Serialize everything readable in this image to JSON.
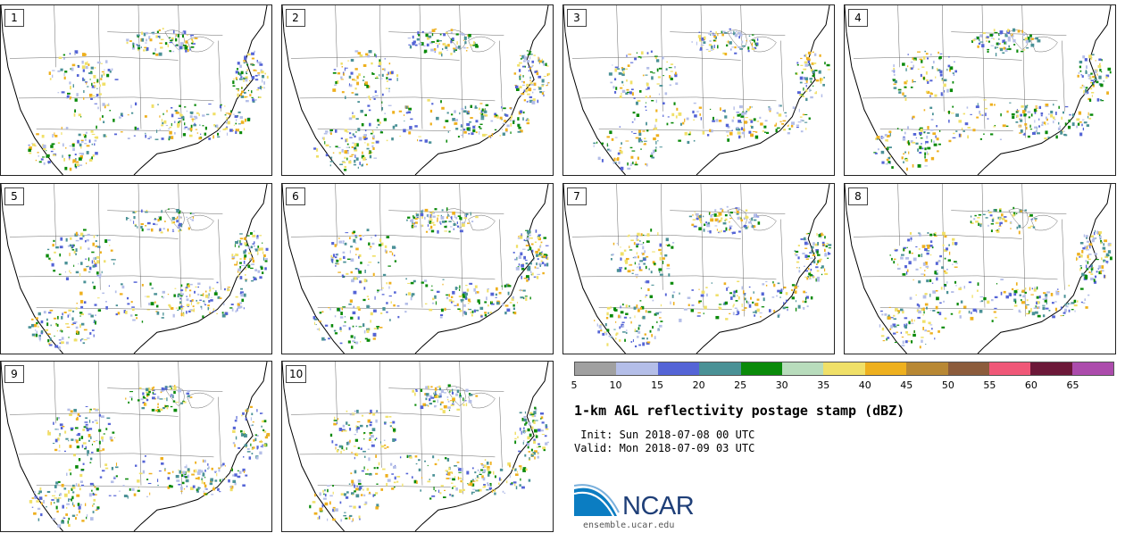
{
  "panels": [
    {
      "label": "1"
    },
    {
      "label": "2"
    },
    {
      "label": "3"
    },
    {
      "label": "4"
    },
    {
      "label": "5"
    },
    {
      "label": "6"
    },
    {
      "label": "7"
    },
    {
      "label": "8"
    },
    {
      "label": "9"
    },
    {
      "label": "10"
    }
  ],
  "colorbar": {
    "colors": [
      "#a0a0a0",
      "#b4bee8",
      "#5464d6",
      "#4a9196",
      "#0a8a0a",
      "#b8dcbc",
      "#f0e068",
      "#eeb01e",
      "#b88834",
      "#8c5c3c",
      "#f05878",
      "#6c1838",
      "#ac4cac"
    ],
    "ticks": [
      "5",
      "10",
      "15",
      "20",
      "25",
      "30",
      "35",
      "40",
      "45",
      "50",
      "55",
      "60",
      "65"
    ]
  },
  "title": "1-km AGL reflectivity postage stamp (dBZ)",
  "init_line": " Init: Sun 2018-07-08 00 UTC",
  "valid_line": "Valid: Mon 2018-07-09 03 UTC",
  "logo": {
    "text": "NCAR",
    "color": "#1f3f78"
  },
  "url": "ensemble.ucar.edu"
}
